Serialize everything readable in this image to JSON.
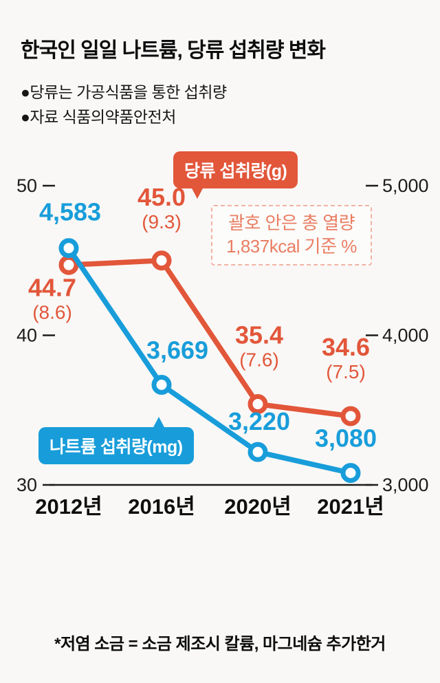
{
  "header": {
    "title": "한국인 일일 나트륨, 당류 섭취량 변화",
    "bullets": [
      "●당류는 가공식품을 통한 섭취량",
      "●자료 식품의약품안전처"
    ]
  },
  "chart_data": {
    "type": "line",
    "categories": [
      "2012년",
      "2016년",
      "2020년",
      "2021년"
    ],
    "series": [
      {
        "key": "sugar",
        "name": "당류 섭취량(g)",
        "axis": "left",
        "color": "#e2563a",
        "values": [
          44.7,
          45.0,
          35.4,
          34.6
        ],
        "value_labels": [
          "44.7",
          "45.0",
          "35.4",
          "34.6"
        ],
        "sub_labels": [
          "(8.6)",
          "(9.3)",
          "(7.6)",
          "(7.5)"
        ]
      },
      {
        "key": "sodium",
        "name": "나트륨 섭취량(mg)",
        "axis": "right",
        "color": "#189dda",
        "values": [
          4583,
          3669,
          3220,
          3080
        ],
        "value_labels": [
          "4,583",
          "3,669",
          "3,220",
          "3,080"
        ]
      }
    ],
    "left_axis": {
      "min": 30,
      "max": 50,
      "ticks": [
        "50",
        "40",
        "30"
      ]
    },
    "right_axis": {
      "min": 3000,
      "max": 5000,
      "ticks": [
        "5,000",
        "4,000",
        "3,000"
      ]
    },
    "legend": {
      "sugar": "당류 섭취량(g)",
      "sodium": "나트륨 섭취량(mg)"
    },
    "annotation": {
      "line1": "괄호 안은 총 열량",
      "line2": "1,837kcal 기준 %"
    }
  },
  "footer": {
    "note": "*저염 소금 = 소금 제조시 칼륨, 마그네슘 추가한거"
  }
}
